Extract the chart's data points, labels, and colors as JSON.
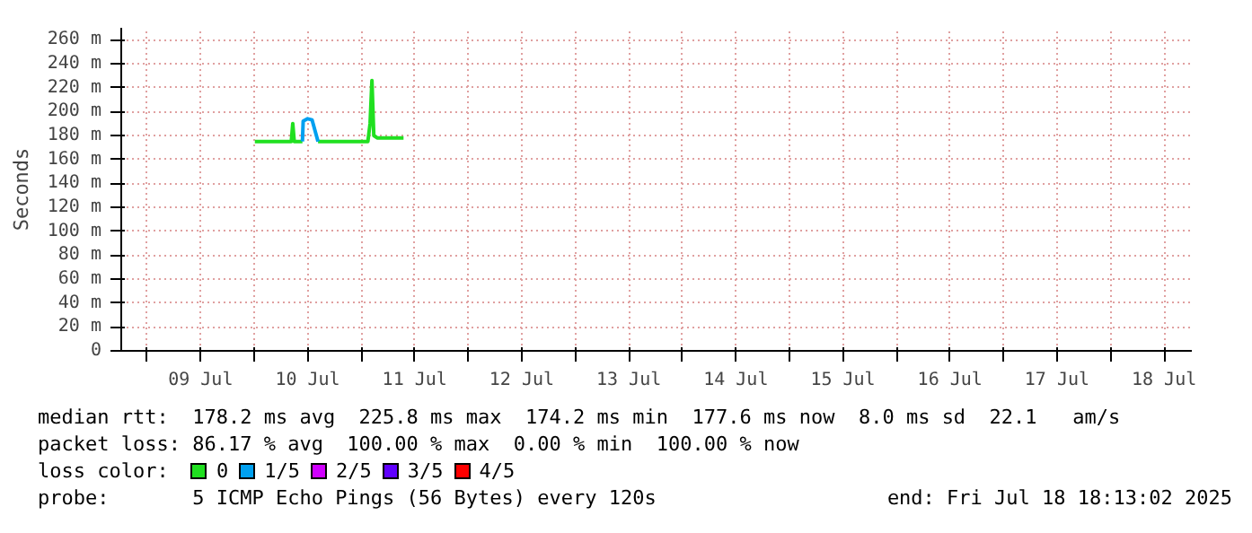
{
  "chart_data": {
    "type": "line",
    "ylabel": "Seconds",
    "legend_title": "loss color:",
    "legend": "bottom",
    "grid": true,
    "line_style": "solid",
    "marker": "none",
    "xlim": [
      "2025-07-08T18:13",
      "2025-07-18T18:13"
    ],
    "xticks": [
      {
        "value": "2025-07-09T00:00",
        "label": null
      },
      {
        "value": "2025-07-09T12:00",
        "label": "09 Jul"
      },
      {
        "value": "2025-07-10T00:00",
        "label": null
      },
      {
        "value": "2025-07-10T12:00",
        "label": "10 Jul"
      },
      {
        "value": "2025-07-11T00:00",
        "label": null
      },
      {
        "value": "2025-07-11T12:00",
        "label": "11 Jul"
      },
      {
        "value": "2025-07-12T00:00",
        "label": null
      },
      {
        "value": "2025-07-12T12:00",
        "label": "12 Jul"
      },
      {
        "value": "2025-07-13T00:00",
        "label": null
      },
      {
        "value": "2025-07-13T12:00",
        "label": "13 Jul"
      },
      {
        "value": "2025-07-14T00:00",
        "label": null
      },
      {
        "value": "2025-07-14T12:00",
        "label": "14 Jul"
      },
      {
        "value": "2025-07-15T00:00",
        "label": null
      },
      {
        "value": "2025-07-15T12:00",
        "label": "15 Jul"
      },
      {
        "value": "2025-07-16T00:00",
        "label": null
      },
      {
        "value": "2025-07-16T12:00",
        "label": "16 Jul"
      },
      {
        "value": "2025-07-17T00:00",
        "label": null
      },
      {
        "value": "2025-07-17T12:00",
        "label": "17 Jul"
      },
      {
        "value": "2025-07-18T00:00",
        "label": null
      },
      {
        "value": "2025-07-18T12:00",
        "label": "18 Jul"
      }
    ],
    "ylim": [
      0,
      270
    ],
    "yticks": [
      0,
      {
        "value": 20,
        "label": "20 m"
      },
      {
        "value": 40,
        "label": "40 m"
      },
      {
        "value": 60,
        "label": "60 m"
      },
      {
        "value": 80,
        "label": "80 m"
      },
      {
        "value": 100,
        "label": "100 m"
      },
      {
        "value": 120,
        "label": "120 m"
      },
      {
        "value": 140,
        "label": "140 m"
      },
      {
        "value": 160,
        "label": "160 m"
      },
      {
        "value": 180,
        "label": "180 m"
      },
      {
        "value": 200,
        "label": "200 m"
      },
      {
        "value": 220,
        "label": "220 m"
      },
      {
        "value": 240,
        "label": "240 m"
      },
      {
        "value": 260,
        "label": "260 m"
      }
    ],
    "series": [
      {
        "name": "0",
        "color": "#20e020",
        "x": [
          "2025-07-10T00:10",
          "2025-07-10T08:20",
          "2025-07-10T08:40",
          "2025-07-10T09:00",
          "2025-07-10T10:50",
          "2025-07-10T12:00",
          "2025-07-10T14:20",
          "2025-07-11T01:30",
          "2025-07-11T02:00",
          "2025-07-11T02:25",
          "2025-07-11T02:50",
          "2025-07-11T03:35",
          "2025-07-11T09:30"
        ],
        "values": [
          175,
          175,
          190,
          175,
          175,
          null,
          175,
          175,
          190,
          226,
          180,
          178,
          178
        ]
      },
      {
        "name": "1/5",
        "color": "#00a0f0",
        "x": [
          "2025-07-10T10:50",
          "2025-07-10T11:00",
          "2025-07-10T12:00",
          "2025-07-10T13:00",
          "2025-07-10T14:20"
        ],
        "values": [
          175,
          192,
          194,
          193,
          175
        ]
      },
      {
        "name": "2/5",
        "color": "#d000ff"
      },
      {
        "name": "3/5",
        "color": "#6000ff"
      },
      {
        "name": "4/5",
        "color": "#ff0000"
      }
    ],
    "annotations": [
      "median rtt:  178.2 ms avg  225.8 ms max  174.2 ms min  177.6 ms now  8.0 ms sd  22.1   am/s",
      "packet loss: 86.17 % avg  100.00 % max  0.00 % min  100.00 % now",
      "probe:       5 ICMP Echo Pings (56 Bytes) every 120s",
      "end: Fri Jul 18 18:13:02 2025"
    ]
  }
}
